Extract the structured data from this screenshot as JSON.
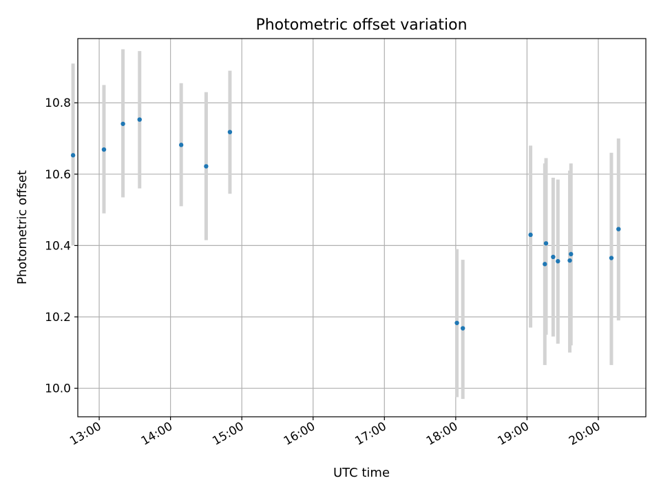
{
  "chart_data": {
    "type": "scatter",
    "title": "Photometric offset variation",
    "xlabel": "UTC time",
    "ylabel": "Photometric offset",
    "x_tick_labels": [
      "13:00",
      "14:00",
      "15:00",
      "16:00",
      "17:00",
      "18:00",
      "19:00",
      "20:00"
    ],
    "y_ticks": [
      10.0,
      10.2,
      10.4,
      10.6,
      10.8
    ],
    "y_tick_labels": [
      "10.0",
      "10.2",
      "10.4",
      "10.6",
      "10.8"
    ],
    "xlim": [
      "12:42",
      "20:40"
    ],
    "ylim": [
      9.92,
      10.98
    ],
    "grid": true,
    "colors": {
      "point": "#1f77b4",
      "error_bar": "#d3d3d3",
      "grid": "#b0b0b0"
    },
    "points": [
      {
        "x": "12:38",
        "y": 10.653,
        "ylow": 10.4,
        "yhigh": 10.91
      },
      {
        "x": "13:04",
        "y": 10.669,
        "ylow": 10.49,
        "yhigh": 10.85
      },
      {
        "x": "13:20",
        "y": 10.741,
        "ylow": 10.535,
        "yhigh": 10.95
      },
      {
        "x": "13:34",
        "y": 10.753,
        "ylow": 10.56,
        "yhigh": 10.945
      },
      {
        "x": "14:09",
        "y": 10.682,
        "ylow": 10.51,
        "yhigh": 10.855
      },
      {
        "x": "14:30",
        "y": 10.622,
        "ylow": 10.415,
        "yhigh": 10.83
      },
      {
        "x": "14:50",
        "y": 10.718,
        "ylow": 10.545,
        "yhigh": 10.89
      },
      {
        "x": "18:01",
        "y": 10.183,
        "ylow": 9.975,
        "yhigh": 10.39
      },
      {
        "x": "18:06",
        "y": 10.168,
        "ylow": 9.97,
        "yhigh": 10.36
      },
      {
        "x": "19:03",
        "y": 10.43,
        "ylow": 10.17,
        "yhigh": 10.68
      },
      {
        "x": "19:15",
        "y": 10.348,
        "ylow": 10.065,
        "yhigh": 10.63
      },
      {
        "x": "19:16",
        "y": 10.406,
        "ylow": 10.15,
        "yhigh": 10.645
      },
      {
        "x": "19:22",
        "y": 10.368,
        "ylow": 10.145,
        "yhigh": 10.59
      },
      {
        "x": "19:26",
        "y": 10.356,
        "ylow": 10.125,
        "yhigh": 10.585
      },
      {
        "x": "19:36",
        "y": 10.358,
        "ylow": 10.1,
        "yhigh": 10.61
      },
      {
        "x": "19:37",
        "y": 10.376,
        "ylow": 10.12,
        "yhigh": 10.63
      },
      {
        "x": "20:11",
        "y": 10.365,
        "ylow": 10.065,
        "yhigh": 10.66
      },
      {
        "x": "20:17",
        "y": 10.446,
        "ylow": 10.19,
        "yhigh": 10.7
      }
    ]
  }
}
